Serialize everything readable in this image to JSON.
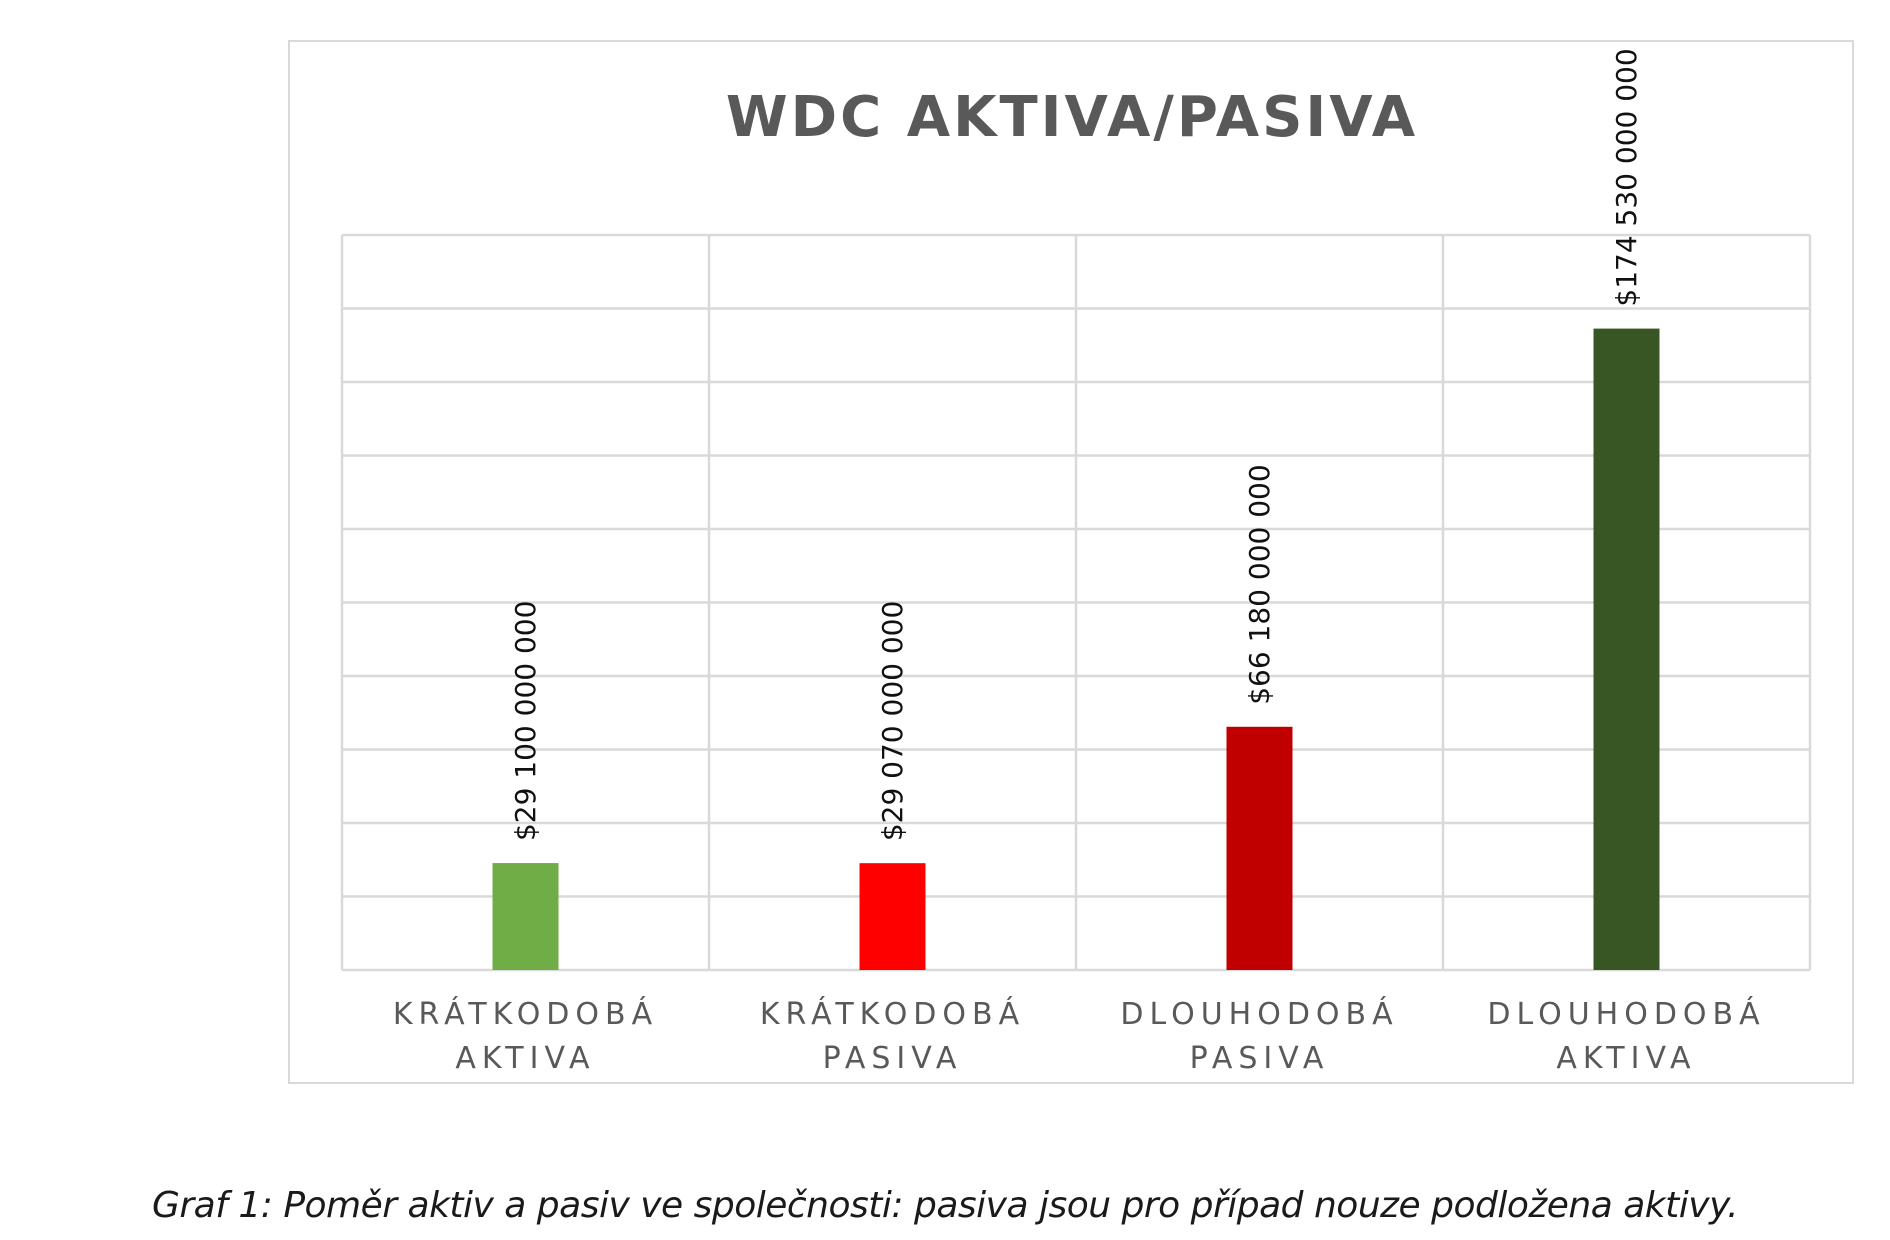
{
  "chart_data": {
    "type": "bar",
    "title": "WDC AKTIVA/PASIVA",
    "xlabel": "",
    "ylabel": "",
    "categories": [
      [
        "KRÁTKODOBÁ",
        "AKTIVA"
      ],
      [
        "KRÁTKODOBÁ",
        "PASIVA"
      ],
      [
        "DLOUHODOBÁ",
        "PASIVA"
      ],
      [
        "DLOUHODOBÁ",
        "AKTIVA"
      ]
    ],
    "values": [
      29100000000,
      29070000000,
      66180000000,
      174530000000
    ],
    "data_labels": [
      "$29 100 000 000",
      "$29 070 000 000",
      "$66 180 000 000",
      "$174 530 000 000"
    ],
    "colors": [
      "#70ad47",
      "#ff0000",
      "#c00000",
      "#375623"
    ],
    "ylim": [
      0,
      200000000000
    ],
    "grid": true,
    "legend": "none"
  },
  "caption": "Graf 1: Poměr aktiv a pasiv ve společnosti: pasiva jsou pro případ nouze podložena aktivy."
}
